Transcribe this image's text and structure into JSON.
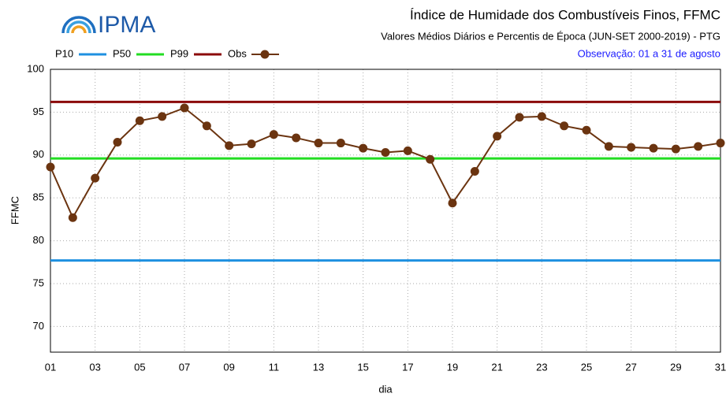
{
  "logo": "IPMA",
  "chart_data": {
    "type": "line",
    "title": "Índice de Humidade dos Combustíveis Finos, FFMC",
    "subtitle": "Valores Médios Diários e Percentis de Época (JUN-SET 2000-2019) - PTG",
    "annotation": "Observação: 01 a 31 de agosto",
    "x_label": "dia",
    "y_label": "FFMC",
    "xlim": [
      1,
      31
    ],
    "ylim": [
      67,
      100
    ],
    "xticks": [
      {
        "value": 1,
        "label": "01"
      },
      {
        "value": 3,
        "label": "03"
      },
      {
        "value": 5,
        "label": "05"
      },
      {
        "value": 7,
        "label": "07"
      },
      {
        "value": 9,
        "label": "09"
      },
      11,
      13,
      15,
      17,
      19,
      21,
      23,
      25,
      27,
      29,
      31
    ],
    "yticks": [
      70,
      75,
      80,
      85,
      90,
      95,
      100
    ],
    "grid": true,
    "reference_lines": [
      {
        "name": "P10",
        "color": "#1e90e0",
        "value": 77.7
      },
      {
        "name": "P50",
        "color": "#22dd22",
        "value": 89.6
      },
      {
        "name": "P99",
        "color": "#8b0a0a",
        "value": 96.2
      }
    ],
    "x": [
      1,
      2,
      3,
      4,
      5,
      6,
      7,
      8,
      9,
      10,
      11,
      12,
      13,
      14,
      15,
      16,
      17,
      18,
      19,
      20,
      21,
      22,
      23,
      24,
      25,
      26,
      27,
      28,
      29,
      30,
      31
    ],
    "series": [
      {
        "name": "Obs",
        "color": "#6b3410",
        "values": [
          88.6,
          82.7,
          87.3,
          91.5,
          94.0,
          94.5,
          95.5,
          93.4,
          91.1,
          91.3,
          92.4,
          92.0,
          91.4,
          91.4,
          90.8,
          90.3,
          90.5,
          89.5,
          84.4,
          88.1,
          92.2,
          94.4,
          94.5,
          93.4,
          92.9,
          91.0,
          90.9,
          90.8,
          90.7,
          91.0,
          91.4
        ]
      }
    ]
  }
}
